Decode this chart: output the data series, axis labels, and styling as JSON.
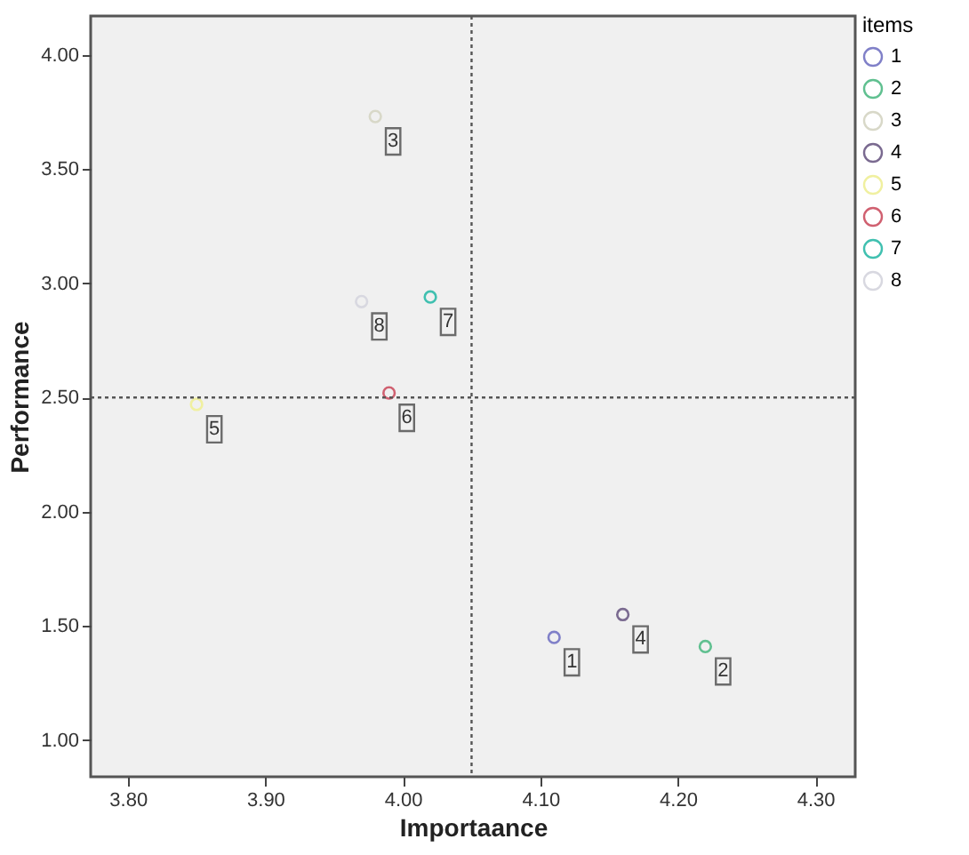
{
  "chart_data": {
    "type": "scatter",
    "xlabel": "Importaance",
    "ylabel": "Performance",
    "legend_title": "items",
    "xlim": [
      3.773,
      4.329
    ],
    "ylim": [
      0.84,
      4.17
    ],
    "xticks": [
      {
        "value": 3.8,
        "label": "3.80"
      },
      {
        "value": 3.9,
        "label": "3.90"
      },
      {
        "value": 4.0,
        "label": "4.00"
      },
      {
        "value": 4.1,
        "label": "4.10"
      },
      {
        "value": 4.2,
        "label": "4.20"
      },
      {
        "value": 4.3,
        "label": "4.30"
      }
    ],
    "yticks": [
      {
        "value": 1.0,
        "label": "1.00"
      },
      {
        "value": 1.5,
        "label": "1.50"
      },
      {
        "value": 2.0,
        "label": "2.00"
      },
      {
        "value": 2.5,
        "label": "2.50"
      },
      {
        "value": 3.0,
        "label": "3.00"
      },
      {
        "value": 3.5,
        "label": "3.50"
      },
      {
        "value": 4.0,
        "label": "4.00"
      }
    ],
    "grid": false,
    "legend": "top right",
    "marker": "circle",
    "ref_lines": [
      {
        "axis": "x",
        "value": 4.05,
        "line_style": "dotted",
        "color": "#555555"
      },
      {
        "axis": "y",
        "value": 2.5,
        "line_style": "dotted",
        "color": "#555555"
      }
    ],
    "series": [
      {
        "name": "1",
        "color": "#8080c8",
        "x": [
          4.11
        ],
        "values": [
          1.45
        ]
      },
      {
        "name": "2",
        "color": "#60c090",
        "x": [
          4.22
        ],
        "values": [
          1.41
        ]
      },
      {
        "name": "3",
        "color": "#d8d8c8",
        "x": [
          3.98
        ],
        "values": [
          3.73
        ]
      },
      {
        "name": "4",
        "color": "#7a6a90",
        "x": [
          4.16
        ],
        "values": [
          1.55
        ]
      },
      {
        "name": "5",
        "color": "#f0f0a0",
        "x": [
          3.85
        ],
        "values": [
          2.47
        ]
      },
      {
        "name": "6",
        "color": "#d06070",
        "x": [
          3.99
        ],
        "values": [
          2.52
        ]
      },
      {
        "name": "7",
        "color": "#40c0b0",
        "x": [
          4.02
        ],
        "values": [
          2.94
        ]
      },
      {
        "name": "8",
        "color": "#d8d8e0",
        "x": [
          3.97
        ],
        "values": [
          2.92
        ]
      }
    ]
  }
}
